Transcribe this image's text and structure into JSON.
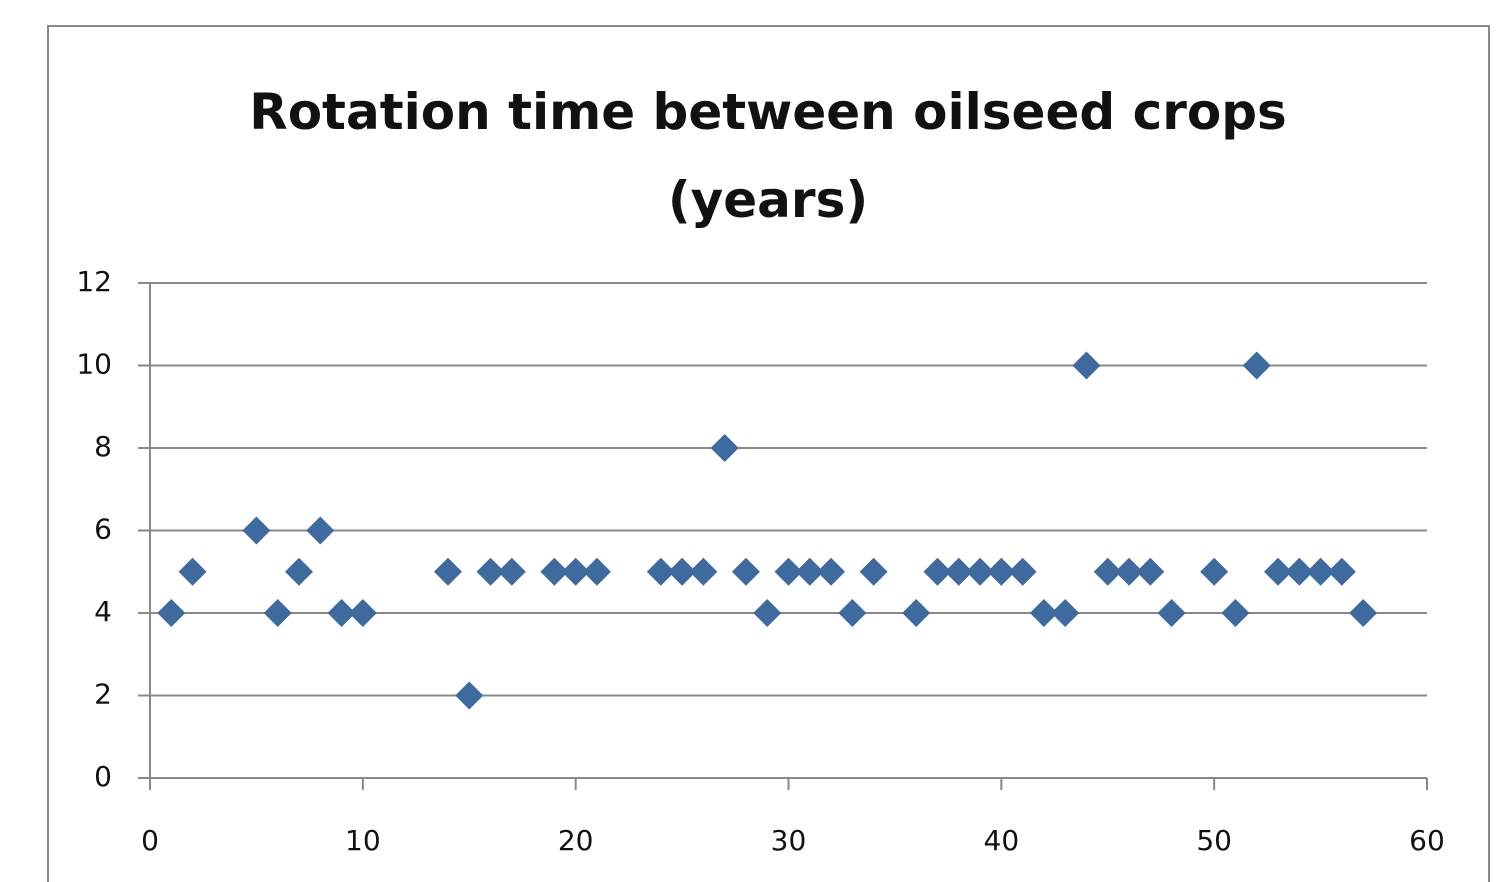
{
  "chart_data": {
    "type": "scatter",
    "title": "Rotation time between oilseed crops (years)",
    "x": [
      1,
      2,
      5,
      6,
      7,
      8,
      9,
      10,
      14,
      15,
      16,
      17,
      19,
      20,
      21,
      24,
      25,
      26,
      27,
      28,
      29,
      30,
      31,
      32,
      33,
      34,
      36,
      37,
      38,
      39,
      40,
      41,
      42,
      43,
      44,
      45,
      46,
      47,
      48,
      50,
      51,
      52,
      53,
      54,
      55,
      56,
      57
    ],
    "values": [
      4,
      5,
      6,
      4,
      5,
      6,
      4,
      4,
      5,
      2,
      5,
      5,
      5,
      5,
      5,
      5,
      5,
      5,
      8,
      5,
      4,
      5,
      5,
      5,
      4,
      5,
      4,
      5,
      5,
      5,
      5,
      5,
      4,
      4,
      10,
      5,
      5,
      5,
      4,
      5,
      4,
      10,
      5,
      5,
      5,
      5,
      4
    ],
    "color": "#3f6a9e",
    "xlim": [
      0,
      60
    ],
    "xticks": [
      0,
      10,
      20,
      30,
      40,
      50,
      60
    ],
    "ylim": [
      0,
      12
    ],
    "yticks": [
      0,
      2,
      4,
      6,
      8,
      10,
      12
    ],
    "grid": true
  }
}
